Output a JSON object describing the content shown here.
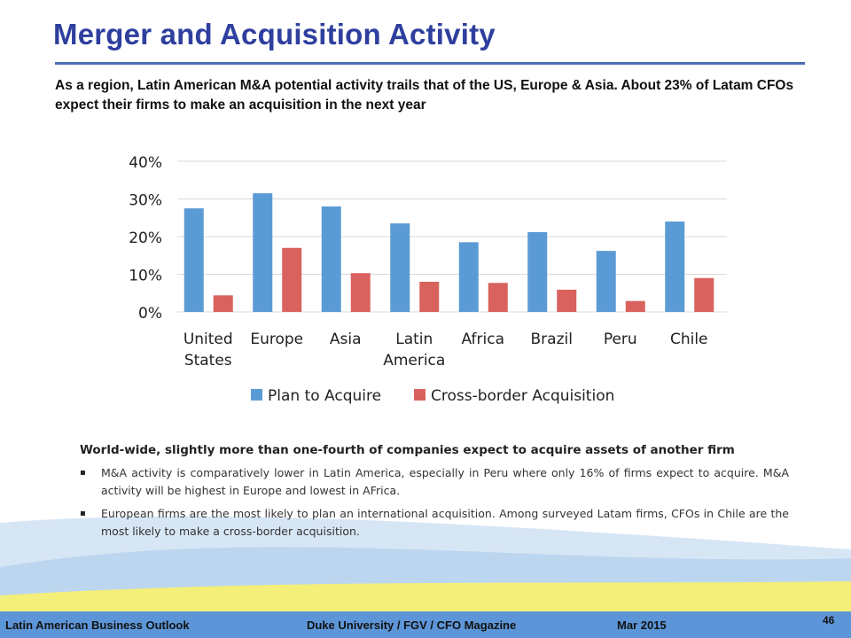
{
  "slide": {
    "title": "Merger and Acquisition Activity",
    "subtitle": "As a region, Latin American M&A potential activity trails that of the US, Europe & Asia. About 23% of Latam CFOs expect their firms to make an acquisition in the next year",
    "body_heading": "World-wide, slightly more than one-fourth of companies expect to acquire assets of another firm",
    "bullets": [
      "M&A activity is comparatively lower in Latin America, especially in Peru where only 16% of firms expect to acquire. M&A activity will be highest in Europe and lowest in AFrica.",
      "European firms are the most likely to plan an international acquisition. Among surveyed Latam firms, CFOs in Chile are the most likely to make a cross-border acquisition."
    ],
    "bullet_glyph": "▪",
    "footer_left": "Latin American Business Outlook",
    "footer_center": "Duke University / FGV / CFO Magazine",
    "footer_date": "Mar 2015",
    "page_number": "46"
  },
  "colors": {
    "title": "#2e3f9e",
    "plan": "#5b9bd5",
    "cross": "#d9625e",
    "footer": "#5d96d8",
    "swoosh_yellow": "#f3ef78"
  },
  "chart_data": {
    "type": "bar",
    "categories": [
      [
        "United",
        "States"
      ],
      [
        "Europe"
      ],
      [
        "Asia"
      ],
      [
        "Latin",
        "America"
      ],
      [
        "Africa"
      ],
      [
        "Brazil"
      ],
      [
        "Peru"
      ],
      [
        "Chile"
      ]
    ],
    "series": [
      {
        "name": "Plan to Acquire",
        "values": [
          27.5,
          31.5,
          28,
          23.5,
          18.5,
          21.2,
          16.2,
          24
        ]
      },
      {
        "name": "Cross-border Acquisition",
        "values": [
          4.4,
          17,
          10.3,
          8,
          7.7,
          5.9,
          2.9,
          9
        ]
      }
    ],
    "yticks": [
      "0%",
      "10%",
      "20%",
      "30%",
      "40%"
    ],
    "ylim": [
      0,
      40
    ],
    "grid": true,
    "legend": "bottom"
  }
}
